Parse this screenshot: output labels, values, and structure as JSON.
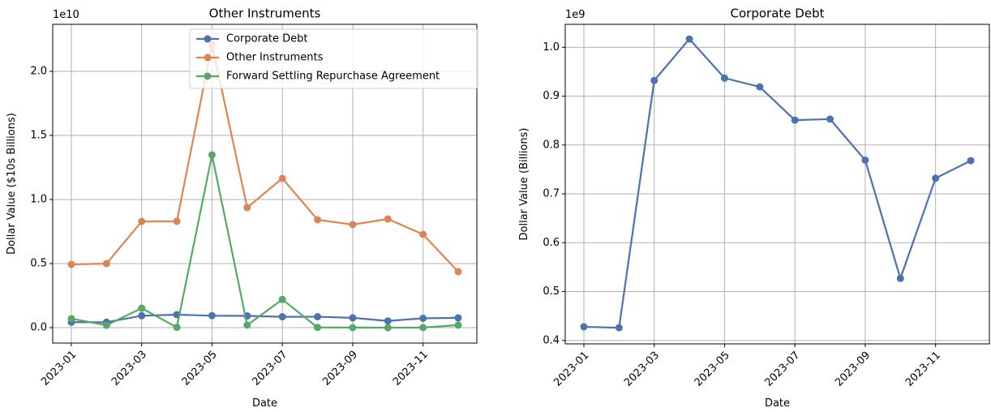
{
  "chart_data": [
    {
      "type": "line",
      "title": "Other Instruments",
      "xlabel": "Date",
      "ylabel": "Dollar Value ($10s Billions)",
      "y_offset_text": "1e10",
      "x": [
        "2023-01",
        "2023-02",
        "2023-03",
        "2023-04",
        "2023-05",
        "2023-06",
        "2023-07",
        "2023-08",
        "2023-09",
        "2023-10",
        "2023-11",
        "2023-12"
      ],
      "xticks": [
        "2023-01",
        "2023-03",
        "2023-05",
        "2023-07",
        "2023-09",
        "2023-11"
      ],
      "series": [
        {
          "name": "Corporate Debt",
          "color": "#4c72b0",
          "values": [
            0.0428,
            0.0426,
            0.0932,
            0.1017,
            0.0937,
            0.0919,
            0.0851,
            0.0853,
            0.0769,
            0.0527,
            0.0732,
            0.0768
          ]
        },
        {
          "name": "Other Instruments",
          "color": "#dd8452",
          "values": [
            0.494,
            0.5,
            0.829,
            0.83,
            2.21,
            0.937,
            1.165,
            0.842,
            0.804,
            0.848,
            0.728,
            0.437
          ]
        },
        {
          "name": "Forward Settling Repurchase Agreement",
          "color": "#55a868",
          "values": [
            0.07,
            0.019,
            0.152,
            0.003,
            1.348,
            0.02,
            0.22,
            0.002,
            0.001,
            0.0,
            0.001,
            0.02
          ]
        }
      ],
      "ylim": [
        -0.12,
        2.367
      ],
      "yticks": [
        {
          "value": 0,
          "label": "0.0"
        },
        0.5,
        {
          "value": 1,
          "label": "1.0"
        },
        1.5,
        {
          "value": 2,
          "label": "2.0"
        }
      ],
      "grid": true,
      "legend": "upper center"
    },
    {
      "type": "line",
      "title": "Corporate Debt",
      "xlabel": "Date",
      "ylabel": "Dollar Value (Billions)",
      "y_offset_text": "1e9",
      "x": [
        "2023-01",
        "2023-02",
        "2023-03",
        "2023-04",
        "2023-05",
        "2023-06",
        "2023-07",
        "2023-08",
        "2023-09",
        "2023-10",
        "2023-11",
        "2023-12"
      ],
      "xticks": [
        "2023-01",
        "2023-03",
        "2023-05",
        "2023-07",
        "2023-09",
        "2023-11"
      ],
      "color": "#4c72b0",
      "values": [
        0.428,
        0.426,
        0.932,
        1.017,
        0.937,
        0.919,
        0.851,
        0.853,
        0.769,
        0.527,
        0.732,
        0.768
      ],
      "ylim": [
        0.393,
        1.047
      ],
      "yticks": [
        0.4,
        0.5,
        0.6,
        0.7,
        0.8,
        0.9,
        {
          "value": 1,
          "label": "1.0"
        }
      ],
      "grid": true
    }
  ]
}
